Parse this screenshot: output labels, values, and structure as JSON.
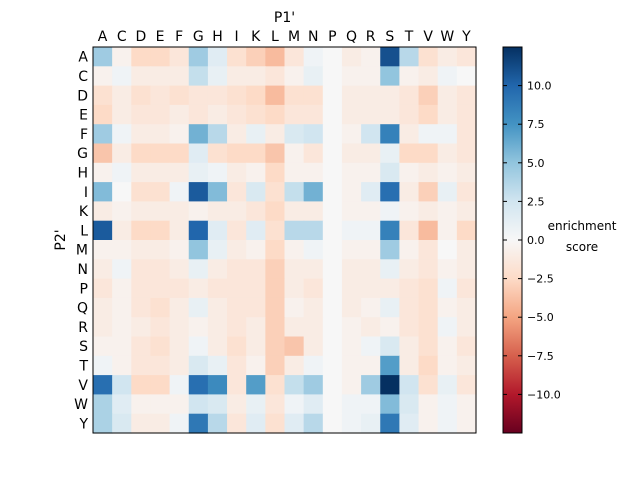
{
  "chart_data": {
    "type": "heatmap",
    "xlabel": "P1'",
    "ylabel": "P2'",
    "x_categories": [
      "A",
      "C",
      "D",
      "E",
      "F",
      "G",
      "H",
      "I",
      "K",
      "L",
      "M",
      "N",
      "P",
      "Q",
      "R",
      "S",
      "T",
      "V",
      "W",
      "Y"
    ],
    "y_categories": [
      "A",
      "C",
      "D",
      "E",
      "F",
      "G",
      "H",
      "I",
      "K",
      "L",
      "M",
      "N",
      "P",
      "Q",
      "R",
      "S",
      "T",
      "V",
      "W",
      "Y"
    ],
    "colorbar": {
      "label_line1": "enrichment",
      "label_line2": "score",
      "range": [
        -12.5,
        12.5
      ],
      "ticks": [
        10.0,
        7.5,
        5.0,
        2.5,
        0.0,
        -2.5,
        -5.0,
        -7.5,
        -10.0
      ],
      "tick_labels": [
        "10.0",
        "7.5",
        "5.0",
        "2.5",
        "0.0",
        "−2.5",
        "−5.0",
        "−7.5",
        "−10.0"
      ],
      "colormap": "RdBu"
    },
    "values": [
      [
        4.5,
        -0.5,
        -2.5,
        -2.5,
        -1.5,
        4.5,
        1.5,
        -2,
        -3,
        -4,
        -1.5,
        0.5,
        0,
        -1,
        -0.5,
        11,
        3.5,
        -2,
        -1,
        -1.5
      ],
      [
        -0.5,
        0.5,
        -1,
        -1,
        -1,
        3,
        1,
        -1,
        -1,
        -1.5,
        -0.5,
        1,
        0,
        -0.5,
        -0.5,
        5,
        -0.5,
        -1,
        0.5,
        0
      ],
      [
        -2,
        -1,
        -2,
        -1.5,
        -2,
        -1.5,
        -1.5,
        -2,
        -2.5,
        -4,
        -2,
        -2,
        0,
        -1,
        -1,
        -1,
        -1.5,
        -3,
        -1,
        -1.5
      ],
      [
        -2.5,
        -1,
        -1.5,
        -1.5,
        -1,
        -1.5,
        -1,
        -1.5,
        -2,
        -2.5,
        -1.5,
        -1.5,
        0,
        -1,
        -1,
        -1,
        -1.5,
        -2.5,
        -1,
        -1.5
      ],
      [
        4.5,
        0.5,
        -1,
        -1,
        -0.5,
        6,
        3.5,
        -1,
        1,
        -1,
        2,
        2.5,
        0,
        -0.5,
        2.5,
        8.5,
        -1,
        0.5,
        0.5,
        -1.5
      ],
      [
        -3.5,
        -1,
        -2.5,
        -2.5,
        -2.5,
        1.5,
        -2,
        -2.5,
        -2.5,
        -3.5,
        -0.5,
        -1.5,
        0,
        -1,
        -1,
        1,
        -2.5,
        -2.5,
        -1,
        -1.5
      ],
      [
        -0.5,
        0.5,
        -1,
        -1,
        -1,
        1,
        0.5,
        -1,
        -0.5,
        -2.5,
        -0.5,
        -0.5,
        0,
        -0.5,
        -0.5,
        2,
        -0.5,
        -1,
        -0.5,
        -1
      ],
      [
        5.5,
        0,
        -2,
        -2,
        0.5,
        10.5,
        5.5,
        -1.5,
        2,
        -2,
        3,
        6,
        0,
        -0.5,
        1.5,
        9.5,
        -1,
        -3,
        1,
        -1.5
      ],
      [
        -1,
        -0.5,
        -1,
        -1,
        -1,
        -0.5,
        -1,
        -1,
        -1.5,
        -2.5,
        -1,
        -1,
        0,
        -0.5,
        -0.5,
        0.5,
        -0.5,
        -1,
        -0.5,
        -1
      ],
      [
        10.5,
        -1,
        -2.5,
        -2.5,
        -1,
        10,
        1.5,
        -1.5,
        1.5,
        -2,
        3.5,
        3.5,
        0,
        0.5,
        0.5,
        8.5,
        -1.5,
        -4,
        -0.5,
        -2.5
      ],
      [
        -0.5,
        -0.5,
        -1,
        -1,
        -0.5,
        5,
        1,
        -1,
        -0.5,
        -2.5,
        -0.5,
        0.5,
        0,
        -0.5,
        -0.5,
        4.5,
        -0.5,
        -1.5,
        0,
        -1
      ],
      [
        -1,
        0.5,
        -1.5,
        -1.5,
        -1,
        1,
        -1,
        -1.5,
        -1.5,
        -3,
        -1,
        -1,
        0,
        -1,
        -1,
        1,
        -1,
        -1.5,
        -0.5,
        -1
      ],
      [
        -1.5,
        -0.5,
        -1.5,
        -1.5,
        -1.5,
        -1,
        -1.5,
        -1.5,
        -1.5,
        -3,
        -1,
        -1.5,
        0,
        -1,
        -1,
        -1,
        -1.5,
        -2,
        0.5,
        -1.5
      ],
      [
        -1,
        -0.5,
        -1.5,
        -2,
        -1,
        1,
        -1,
        -1.5,
        -1.5,
        -3,
        -0.5,
        -1,
        0,
        -1,
        -0.5,
        1,
        -1.5,
        -2,
        -0.5,
        -1
      ],
      [
        -1,
        -0.5,
        -1,
        -1.5,
        -1,
        -0.5,
        -1,
        -1.5,
        -1,
        -3,
        -1,
        -1,
        0,
        -0.5,
        -1,
        -0.5,
        -1.5,
        -2,
        0.5,
        -1
      ],
      [
        -0.5,
        -0.5,
        -1.5,
        -2,
        -1,
        0.5,
        -1,
        -2,
        -1,
        -3,
        -3.5,
        -1,
        0,
        -0.5,
        0.5,
        2,
        -1,
        -2,
        -0.5,
        -1.5
      ],
      [
        0.5,
        -0.5,
        -1.5,
        -1.5,
        -1,
        2,
        1,
        -1.5,
        -0.5,
        -3,
        -1,
        0.5,
        0,
        -0.5,
        -0.5,
        7,
        -1,
        -2.5,
        -0.5,
        -1
      ],
      [
        9.5,
        2.5,
        -2.5,
        -2.5,
        0.5,
        9.5,
        8,
        -1.5,
        7,
        -2,
        3,
        4.5,
        0,
        -0.5,
        4.5,
        12.5,
        2.5,
        -2,
        1,
        -1.5
      ],
      [
        4,
        1.5,
        -0.5,
        -0.5,
        -0.5,
        2.5,
        2,
        -1,
        1,
        -1.5,
        0.5,
        1.5,
        0,
        0.5,
        0.5,
        5.5,
        2,
        -0.5,
        0.5,
        -0.5
      ],
      [
        4,
        2,
        -1,
        -1,
        0.5,
        9,
        3.5,
        -1.5,
        1.5,
        -2,
        1.5,
        3.5,
        0,
        0.5,
        1,
        9,
        1.5,
        -0.5,
        0.5,
        -0.5
      ]
    ]
  }
}
